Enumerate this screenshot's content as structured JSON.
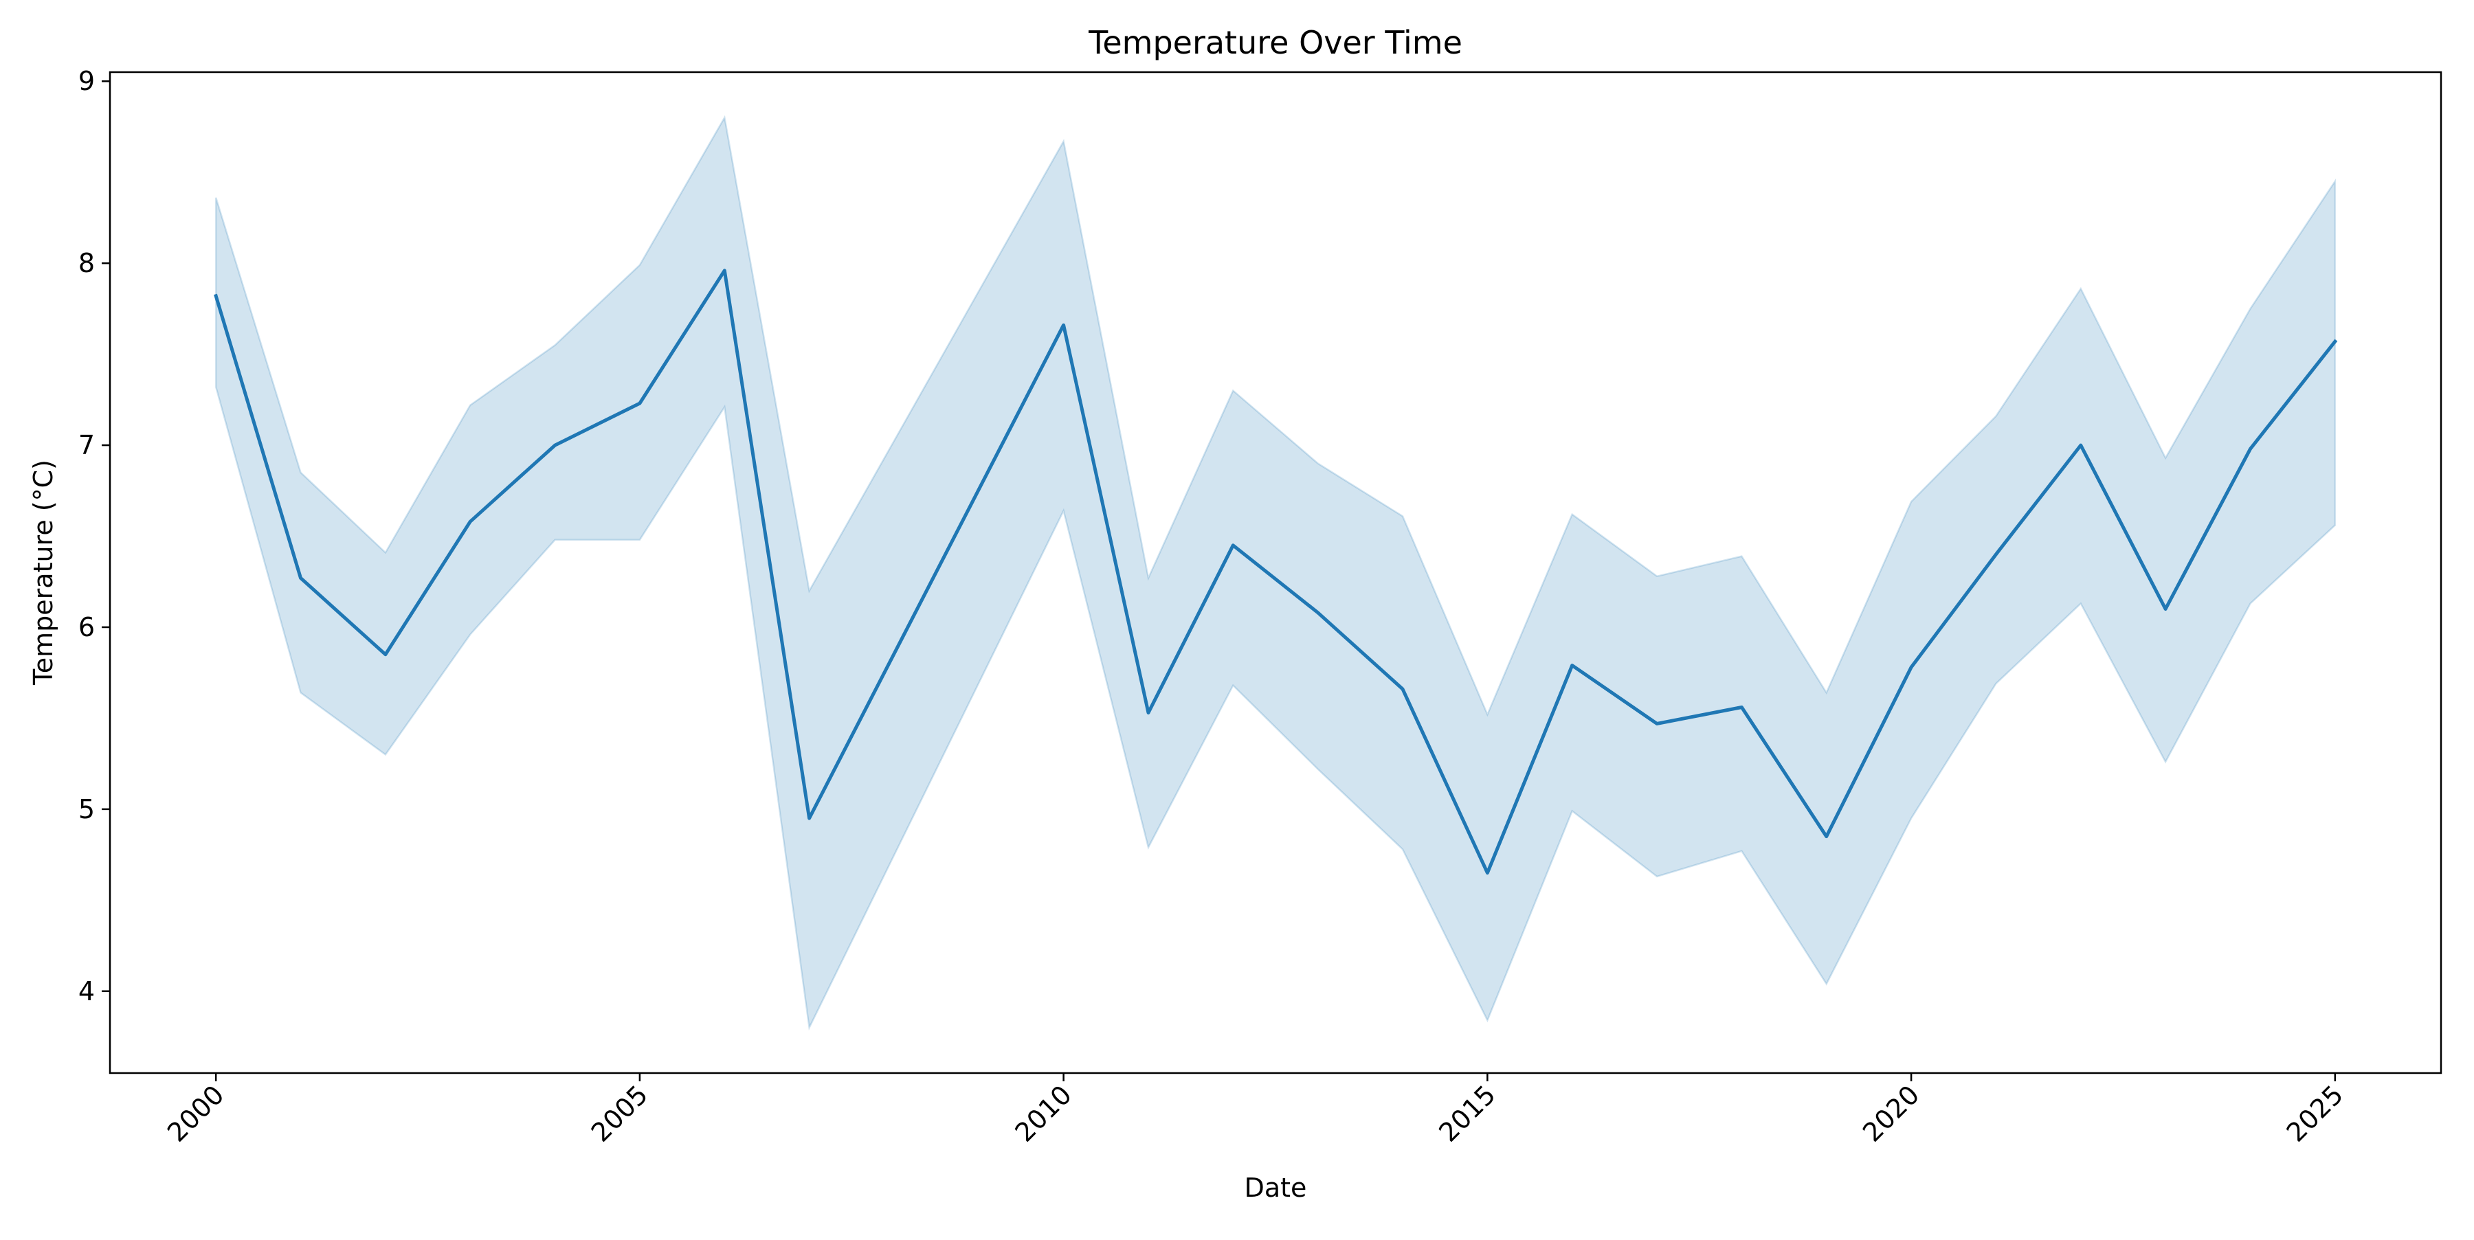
{
  "chart_data": {
    "type": "line",
    "title": "Temperature Over Time",
    "xlabel": "Date",
    "ylabel": "Temperature (°C)",
    "xlim": [
      1998.75,
      2026.25
    ],
    "ylim": [
      3.55,
      9.05
    ],
    "grid": false,
    "x_ticks": [
      2000,
      2005,
      2010,
      2015,
      2020,
      2025
    ],
    "x_tick_labels": [
      "2000",
      "2005",
      "2010",
      "2015",
      "2020",
      "2025"
    ],
    "y_ticks": [
      4,
      5,
      6,
      7,
      8,
      9
    ],
    "y_tick_labels": [
      "4",
      "5",
      "6",
      "7",
      "8",
      "9"
    ],
    "line_color": "#1f77b4",
    "band_color": "#1f77b4",
    "series": [
      {
        "x": [
          2000,
          2001,
          2002,
          2003,
          2004,
          2005,
          2006,
          2007,
          2010,
          2011,
          2012,
          2013,
          2014,
          2015,
          2016,
          2017,
          2018,
          2019,
          2020,
          2021,
          2022,
          2023,
          2024,
          2025
        ],
        "values": [
          7.82,
          6.27,
          5.85,
          6.58,
          7.0,
          7.23,
          7.96,
          4.95,
          7.66,
          5.53,
          6.45,
          6.08,
          5.66,
          4.65,
          5.79,
          5.47,
          5.56,
          4.85,
          5.78,
          6.4,
          7.0,
          6.1,
          6.98,
          7.57
        ],
        "lower": [
          7.32,
          5.64,
          5.3,
          5.96,
          6.48,
          6.48,
          7.21,
          3.8,
          6.64,
          4.79,
          5.68,
          5.22,
          4.78,
          3.84,
          4.99,
          4.63,
          4.77,
          4.04,
          4.95,
          5.69,
          6.13,
          5.26,
          6.13,
          6.56
        ],
        "upper": [
          8.36,
          6.85,
          6.41,
          7.22,
          7.55,
          7.99,
          8.8,
          6.2,
          8.67,
          6.27,
          7.3,
          6.9,
          6.61,
          5.52,
          6.62,
          6.28,
          6.39,
          5.64,
          6.69,
          7.16,
          7.86,
          6.93,
          7.75,
          8.45
        ]
      }
    ]
  }
}
